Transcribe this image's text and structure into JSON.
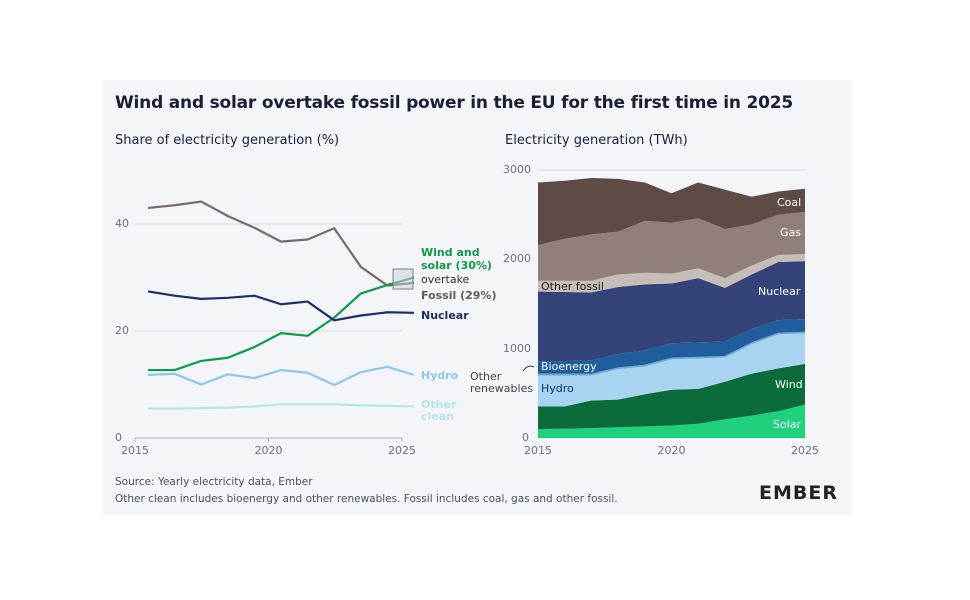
{
  "title": "Wind and solar overtake fossil power in the EU for the first time in 2025",
  "footer": {
    "source": "Source: Yearly electricity data, Ember",
    "note": "Other clean includes bioenergy and other renewables. Fossil includes coal, gas and other fossil.",
    "logo": "EMBER"
  },
  "chart_data": [
    {
      "type": "line",
      "title": "Share of electricity generation (%)",
      "x": [
        2015,
        2016,
        2017,
        2018,
        2019,
        2020,
        2021,
        2022,
        2023,
        2024,
        2025
      ],
      "x_ticks": [
        "2015",
        "2020",
        "2025"
      ],
      "y_ticks": [
        "0",
        "20",
        "40"
      ],
      "ylim": [
        0,
        45
      ],
      "grid": true,
      "series": [
        {
          "name": "Fossil",
          "label": "Fossil (29%)",
          "color": "#7a6a66",
          "values": [
            43,
            43.5,
            44.2,
            41.5,
            39.3,
            36.7,
            37.1,
            39.2,
            32,
            28.5,
            29
          ]
        },
        {
          "name": "Wind and solar",
          "label": "Wind and solar (30%)",
          "color": "#0f9a4a",
          "values": [
            12.7,
            12.7,
            14.4,
            15,
            17,
            19.6,
            19.1,
            22.5,
            27,
            28.6,
            30
          ]
        },
        {
          "name": "Nuclear",
          "label": "Nuclear",
          "color": "#1d2e6b",
          "values": [
            27.4,
            26.6,
            26,
            26.2,
            26.6,
            25,
            25.5,
            22,
            22.9,
            23.5,
            23.4
          ]
        },
        {
          "name": "Hydro",
          "label": "Hydro",
          "color": "#8ec6ec",
          "values": [
            11.8,
            12,
            10,
            11.9,
            11.2,
            12.7,
            12.2,
            9.9,
            12.3,
            13.3,
            11.8
          ]
        },
        {
          "name": "Other clean",
          "label": "Other clean",
          "color": "#b5e6e6",
          "values": [
            5.5,
            5.5,
            5.6,
            5.7,
            5.9,
            6.3,
            6.3,
            6.3,
            6.1,
            6,
            5.9
          ]
        }
      ],
      "annotations": {
        "overtake_line1": "Wind and",
        "overtake_line2": "solar (30%)",
        "overtake_word": "overtake",
        "fossil": "Fossil (29%)"
      }
    },
    {
      "type": "area",
      "stacked": true,
      "title": "Electricity generation (TWh)",
      "x": [
        2015,
        2016,
        2017,
        2018,
        2019,
        2020,
        2021,
        2022,
        2023,
        2024,
        2025
      ],
      "x_ticks": [
        "2015",
        "2020",
        "2025"
      ],
      "y_ticks": [
        "0",
        "1000",
        "2000",
        "3000"
      ],
      "ylim": [
        0,
        3000
      ],
      "series": [
        {
          "name": "Solar",
          "color": "#1fd07c",
          "values": [
            100,
            105,
            110,
            120,
            130,
            140,
            160,
            210,
            250,
            300,
            375
          ]
        },
        {
          "name": "Wind",
          "color": "#0b6b3a",
          "values": [
            254,
            249,
            310,
            310,
            360,
            400,
            390,
            420,
            470,
            480,
            455
          ]
        },
        {
          "name": "Hydro",
          "color": "#a8d4f2",
          "values": [
            346,
            346,
            280,
            340,
            310,
            340,
            340,
            270,
            330,
            380,
            340
          ]
        },
        {
          "name": "Other renewables",
          "color": "#6fa9d8",
          "values": [
            20,
            20,
            20,
            20,
            20,
            20,
            20,
            20,
            20,
            20,
            20
          ]
        },
        {
          "name": "Bioenergy",
          "color": "#1f5d9c",
          "values": [
            140,
            140,
            150,
            150,
            160,
            160,
            160,
            160,
            150,
            140,
            140
          ]
        },
        {
          "name": "Nuclear",
          "color": "#34447a",
          "values": [
            780,
            775,
            760,
            750,
            740,
            670,
            720,
            600,
            610,
            650,
            650
          ]
        },
        {
          "name": "Other fossil",
          "color": "#c6bcb8",
          "values": [
            120,
            125,
            130,
            140,
            130,
            110,
            110,
            110,
            100,
            80,
            80
          ]
        },
        {
          "name": "Gas",
          "color": "#908079",
          "values": [
            400,
            470,
            520,
            480,
            580,
            570,
            560,
            550,
            460,
            450,
            470
          ]
        },
        {
          "name": "Coal",
          "color": "#5e4b45",
          "values": [
            700,
            650,
            630,
            590,
            430,
            330,
            400,
            440,
            310,
            260,
            260
          ]
        }
      ],
      "other_renewables_label_1": "Other",
      "other_renewables_label_2": "renewables"
    }
  ]
}
